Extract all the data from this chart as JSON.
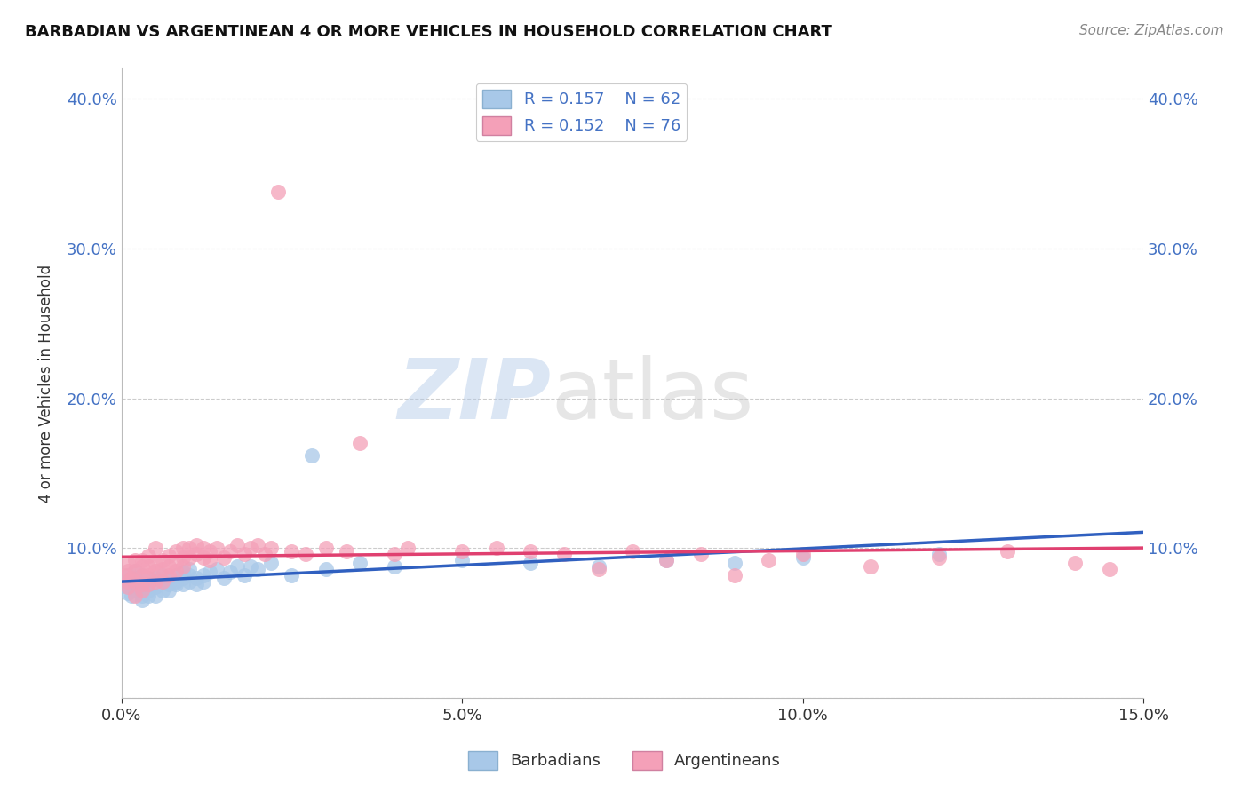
{
  "title": "BARBADIAN VS ARGENTINEAN 4 OR MORE VEHICLES IN HOUSEHOLD CORRELATION CHART",
  "source_text": "Source: ZipAtlas.com",
  "ylabel": "4 or more Vehicles in Household",
  "xlim": [
    0.0,
    0.15
  ],
  "ylim": [
    0.0,
    0.42
  ],
  "xtick_vals": [
    0.0,
    0.05,
    0.1,
    0.15
  ],
  "xtick_labels": [
    "0.0%",
    "5.0%",
    "10.0%",
    "15.0%"
  ],
  "ytick_vals": [
    0.0,
    0.1,
    0.2,
    0.3,
    0.4
  ],
  "ytick_labels": [
    "",
    "10.0%",
    "20.0%",
    "30.0%",
    "40.0%"
  ],
  "barbadian_R": 0.157,
  "barbadian_N": 62,
  "argentinean_R": 0.152,
  "argentinean_N": 76,
  "barbadian_color": "#a8c8e8",
  "argentinean_color": "#f4a0b8",
  "barbadian_line_color": "#3060c0",
  "argentinean_line_color": "#e04070",
  "legend_label_1": "Barbadians",
  "legend_label_2": "Argentineans",
  "watermark_1": "ZIP",
  "watermark_2": "atlas",
  "barbadian_x": [
    0.0005,
    0.001,
    0.001,
    0.001,
    0.0015,
    0.002,
    0.002,
    0.002,
    0.002,
    0.0025,
    0.003,
    0.003,
    0.003,
    0.003,
    0.003,
    0.004,
    0.004,
    0.004,
    0.004,
    0.005,
    0.005,
    0.005,
    0.006,
    0.006,
    0.006,
    0.007,
    0.007,
    0.007,
    0.008,
    0.008,
    0.008,
    0.009,
    0.009,
    0.009,
    0.01,
    0.01,
    0.01,
    0.011,
    0.011,
    0.012,
    0.012,
    0.013,
    0.014,
    0.015,
    0.016,
    0.017,
    0.018,
    0.019,
    0.02,
    0.022,
    0.025,
    0.028,
    0.03,
    0.035,
    0.04,
    0.05,
    0.06,
    0.07,
    0.08,
    0.09,
    0.1,
    0.12
  ],
  "barbadian_y": [
    0.075,
    0.07,
    0.078,
    0.082,
    0.068,
    0.072,
    0.08,
    0.076,
    0.085,
    0.074,
    0.078,
    0.072,
    0.068,
    0.082,
    0.065,
    0.076,
    0.08,
    0.072,
    0.068,
    0.08,
    0.074,
    0.068,
    0.078,
    0.072,
    0.082,
    0.076,
    0.08,
    0.072,
    0.082,
    0.076,
    0.078,
    0.08,
    0.084,
    0.076,
    0.082,
    0.078,
    0.086,
    0.08,
    0.076,
    0.082,
    0.078,
    0.084,
    0.086,
    0.08,
    0.084,
    0.088,
    0.082,
    0.088,
    0.086,
    0.09,
    0.082,
    0.162,
    0.086,
    0.09,
    0.088,
    0.092,
    0.09,
    0.088,
    0.092,
    0.09,
    0.094,
    0.096
  ],
  "argentinean_x": [
    0.0005,
    0.001,
    0.001,
    0.001,
    0.001,
    0.0015,
    0.002,
    0.002,
    0.002,
    0.002,
    0.003,
    0.003,
    0.003,
    0.003,
    0.003,
    0.004,
    0.004,
    0.004,
    0.004,
    0.005,
    0.005,
    0.005,
    0.005,
    0.006,
    0.006,
    0.006,
    0.007,
    0.007,
    0.007,
    0.008,
    0.008,
    0.008,
    0.009,
    0.009,
    0.009,
    0.01,
    0.01,
    0.011,
    0.011,
    0.012,
    0.012,
    0.013,
    0.013,
    0.014,
    0.015,
    0.016,
    0.017,
    0.018,
    0.019,
    0.02,
    0.021,
    0.022,
    0.023,
    0.025,
    0.027,
    0.03,
    0.033,
    0.035,
    0.04,
    0.042,
    0.05,
    0.055,
    0.06,
    0.065,
    0.07,
    0.075,
    0.08,
    0.085,
    0.09,
    0.095,
    0.1,
    0.11,
    0.12,
    0.13,
    0.14,
    0.145
  ],
  "argentinean_y": [
    0.082,
    0.078,
    0.085,
    0.09,
    0.074,
    0.08,
    0.085,
    0.078,
    0.092,
    0.068,
    0.082,
    0.088,
    0.076,
    0.092,
    0.072,
    0.088,
    0.082,
    0.095,
    0.076,
    0.09,
    0.085,
    0.078,
    0.1,
    0.092,
    0.086,
    0.078,
    0.095,
    0.088,
    0.082,
    0.098,
    0.09,
    0.085,
    0.1,
    0.094,
    0.088,
    0.1,
    0.094,
    0.102,
    0.096,
    0.1,
    0.094,
    0.098,
    0.092,
    0.1,
    0.094,
    0.098,
    0.102,
    0.096,
    0.1,
    0.102,
    0.096,
    0.1,
    0.338,
    0.098,
    0.096,
    0.1,
    0.098,
    0.17,
    0.096,
    0.1,
    0.098,
    0.1,
    0.098,
    0.096,
    0.086,
    0.098,
    0.092,
    0.096,
    0.082,
    0.092,
    0.096,
    0.088,
    0.094,
    0.098,
    0.09,
    0.086
  ]
}
